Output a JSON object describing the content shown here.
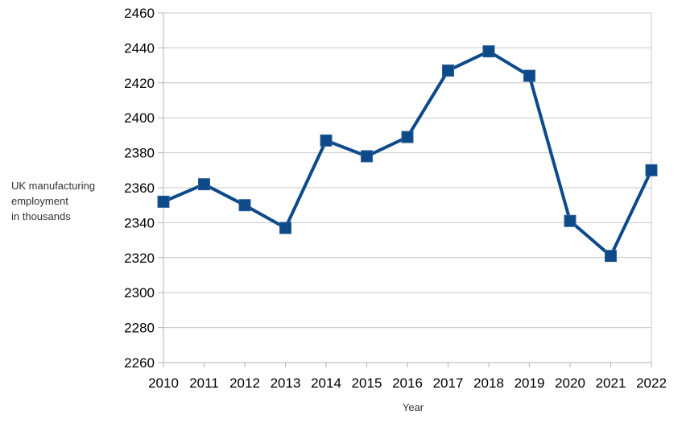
{
  "chart_data": {
    "type": "line",
    "title": "",
    "xlabel": "Year",
    "ylabel_lines": [
      "UK manufacturing",
      "employment",
      "in thousands"
    ],
    "categories": [
      "2010",
      "2011",
      "2012",
      "2013",
      "2014",
      "2015",
      "2016",
      "2017",
      "2018",
      "2019",
      "2020",
      "2021",
      "2022"
    ],
    "series": [
      {
        "values": [
          2352,
          2362,
          2350,
          2337,
          2387,
          2378,
          2389,
          2427,
          2438,
          2424,
          2341,
          2321,
          2370
        ]
      }
    ],
    "ylim": [
      2260,
      2460
    ],
    "yticks": [
      2260,
      2280,
      2300,
      2320,
      2340,
      2360,
      2380,
      2400,
      2420,
      2440,
      2460
    ],
    "grid": true,
    "legend": "none",
    "line_color": "#0d4a8a"
  }
}
